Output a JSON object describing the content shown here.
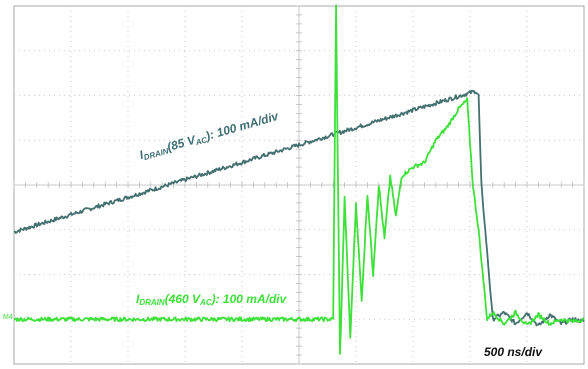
{
  "chart_data": {
    "type": "line",
    "title": "",
    "xlabel": "",
    "ylabel": "",
    "timebase": "500 ns/div",
    "grid": true,
    "divisions": {
      "x": 10,
      "y": 8
    },
    "xlim": [
      0,
      10
    ],
    "ylim": [
      -4,
      4
    ],
    "series": [
      {
        "name_parts": {
          "main": "I",
          "sub": "DRAIN",
          "rest": "(85 V",
          "sub2": "AC",
          "tail": "): 100 mA/div"
        },
        "color": "#44706f",
        "x": [
          0,
          8.1,
          8.15,
          8.2,
          8.4,
          8.6,
          8.8,
          9.0,
          9.2,
          9.4,
          9.6,
          9.8,
          10
        ],
        "y": [
          -1.05,
          2.1,
          2.0,
          0.0,
          -3.0,
          -2.85,
          -3.1,
          -2.85,
          -3.15,
          -2.9,
          -3.1,
          -3.0,
          -3.05
        ]
      },
      {
        "name_parts": {
          "main": "I",
          "sub": "DRAIN",
          "rest": "(460 V",
          "sub2": "AC",
          "tail": "): 100 mA/div"
        },
        "color": "#3ee03a",
        "x": [
          0,
          5.6,
          5.65,
          5.72,
          5.8,
          5.9,
          6.0,
          6.1,
          6.2,
          6.3,
          6.4,
          6.5,
          6.6,
          6.7,
          6.8,
          7.0,
          7.2,
          7.4,
          7.6,
          7.8,
          7.95,
          8.05,
          8.15,
          8.3,
          8.4,
          8.6,
          8.8,
          9.0,
          9.2,
          9.4,
          9.6,
          9.8,
          10
        ],
        "y": [
          -3.0,
          -3.0,
          4.0,
          -3.8,
          -0.3,
          -3.4,
          -0.4,
          -2.6,
          -0.2,
          -2.0,
          0.0,
          -1.2,
          0.2,
          -0.7,
          0.2,
          0.4,
          0.5,
          1.0,
          1.3,
          1.7,
          1.9,
          0.0,
          -1.0,
          -3.0,
          -2.85,
          -3.1,
          -2.85,
          -3.15,
          -2.9,
          -3.1,
          -3.0,
          -3.05,
          -3.0
        ]
      }
    ],
    "annotations": [
      "500 ns/div"
    ],
    "colors": {
      "grid": "#bdbdbd",
      "frame": "#a9a9a9",
      "label_dark": "#3f6e73",
      "label_green": "#3ee03a"
    }
  },
  "labels": {
    "ch1_marker": "M4"
  }
}
